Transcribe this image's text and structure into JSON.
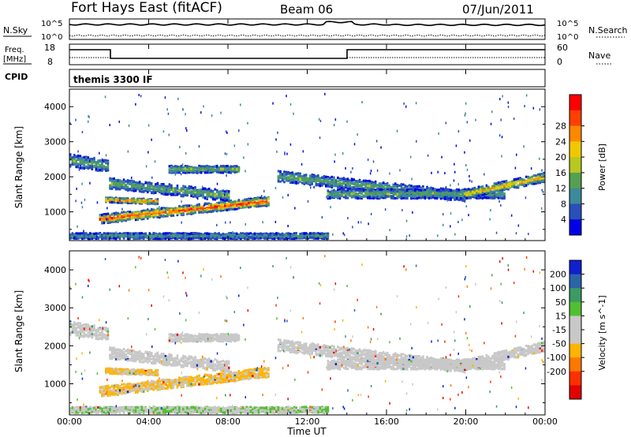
{
  "header": {
    "station": "Fort Hays East (fitACF)",
    "beam": "Beam 06",
    "date": "07/Jun/2011"
  },
  "top_panels": {
    "nsky_label": "N.Sky",
    "nsky_ticks": [
      "10^5",
      "10^0"
    ],
    "nsearch_label": "N.Search",
    "nsearch_ticks": [
      "10^5",
      "10^0"
    ],
    "freq_label": "Freq.",
    "freq_unit": "[MHz]",
    "freq_ticks": [
      "18",
      "8"
    ],
    "nave_label": "Nave",
    "nave_ticks": [
      "60",
      "0"
    ],
    "cpid_label": "CPID",
    "cpid_value": "themis 3300 IF"
  },
  "colors": {
    "power": [
      "#0000e8",
      "#2850b8",
      "#3d8a9a",
      "#55a050",
      "#b8c820",
      "#f0c800",
      "#ff8800",
      "#ff4000",
      "#ff0000"
    ],
    "velocity": [
      "#1020d0",
      "#2c64a8",
      "#3c9a64",
      "#50c030",
      "#c8c8c8",
      "#c8c8c8",
      "#ffb400",
      "#ff7800",
      "#ff3000",
      "#e00000"
    ]
  },
  "chart_data": [
    {
      "type": "heatmap",
      "name": "power",
      "ylabel": "Slant Range [km]",
      "ylim": [
        180,
        4500
      ],
      "yticks": [
        "1000",
        "2000",
        "3000",
        "4000"
      ],
      "colorbar_label": "Power [dB]",
      "colorbar_ticks": [
        "4",
        "8",
        "12",
        "16",
        "20",
        "24",
        "28"
      ],
      "colorbar_range": [
        0,
        32
      ]
    },
    {
      "type": "heatmap",
      "name": "velocity",
      "ylabel": "Slant Range [km]",
      "ylim": [
        180,
        4500
      ],
      "yticks": [
        "1000",
        "2000",
        "3000",
        "4000"
      ],
      "colorbar_label": "Velocity [m s^-1]",
      "colorbar_ticks": [
        "200",
        "100",
        "50",
        "15",
        "-15",
        "-50",
        "-100",
        "-200"
      ]
    }
  ],
  "x_axis": {
    "label": "Time UT",
    "ticks": [
      "00:00",
      "04:00",
      "08:00",
      "12:00",
      "16:00",
      "20:00",
      "00:00"
    ],
    "range_hours": [
      0,
      24
    ]
  }
}
